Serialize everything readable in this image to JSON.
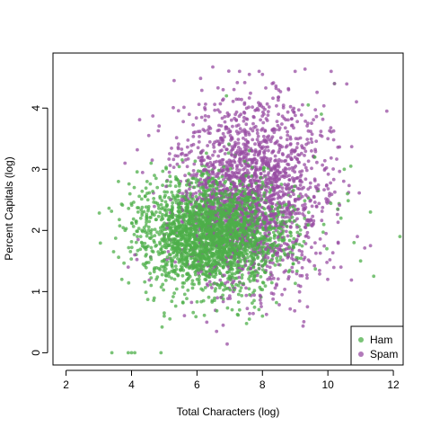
{
  "chart_data": {
    "type": "scatter",
    "title": "",
    "xlabel": "Total Characters (log)",
    "ylabel": "Percent Capitals (log)",
    "xlim": [
      1.6,
      12.3
    ],
    "ylim": [
      -0.2,
      4.9
    ],
    "xticks": [
      2,
      4,
      6,
      8,
      10,
      12
    ],
    "yticks": [
      0,
      1,
      2,
      3,
      4
    ],
    "legend": {
      "position": "bottom-right",
      "entries": [
        "Ham",
        "Spam"
      ]
    },
    "series": [
      {
        "name": "Ham",
        "color": "#4daf4a",
        "opacity": 0.75,
        "cluster": {
          "x_mean": 6.5,
          "x_sd": 1.1,
          "y_mean": 1.95,
          "y_sd": 0.45,
          "count": 2600
        },
        "points": [
          [
            3.4,
            0.0
          ],
          [
            3.9,
            0.0
          ],
          [
            4.0,
            0.0
          ],
          [
            4.1,
            0.0
          ],
          [
            4.9,
            0.0
          ],
          [
            3.6,
            2.8
          ],
          [
            4.6,
            3.1
          ],
          [
            4.7,
            2.9
          ],
          [
            5.0,
            0.6
          ],
          [
            5.0,
            0.65
          ],
          [
            4.6,
            1.1
          ],
          [
            4.2,
            2.3
          ],
          [
            4.5,
            2.5
          ],
          [
            4.4,
            2.0
          ],
          [
            10.5,
            3.0
          ],
          [
            10.7,
            3.05
          ],
          [
            10.6,
            2.6
          ],
          [
            10.4,
            2.2
          ],
          [
            10.3,
            2.35
          ],
          [
            11.3,
            2.3
          ],
          [
            12.2,
            1.9
          ],
          [
            11.4,
            1.25
          ],
          [
            11.0,
            1.5
          ],
          [
            10.8,
            1.8
          ],
          [
            9.8,
            3.9
          ],
          [
            10.2,
            4.4
          ],
          [
            7.6,
            0.55
          ],
          [
            8.0,
            0.6
          ],
          [
            7.3,
            0.7
          ],
          [
            6.2,
            0.85
          ],
          [
            9.4,
            4.05
          ],
          [
            6.9,
            4.2
          ],
          [
            9.6,
            3.2
          ]
        ]
      },
      {
        "name": "Spam",
        "color": "#984ea3",
        "opacity": 0.75,
        "cluster": {
          "x_mean": 7.7,
          "x_sd": 1.1,
          "y_mean": 2.6,
          "y_sd": 0.75,
          "count": 1900
        },
        "points": [
          [
            7.3,
            4.6
          ],
          [
            7.6,
            4.55
          ],
          [
            7.9,
            4.6
          ],
          [
            8.0,
            4.55
          ],
          [
            9.0,
            4.6
          ],
          [
            10.1,
            4.6
          ],
          [
            5.3,
            4.45
          ],
          [
            6.8,
            4.3
          ],
          [
            8.3,
            4.4
          ],
          [
            8.8,
            4.3
          ],
          [
            11.8,
            3.95
          ],
          [
            10.9,
            1.9
          ],
          [
            11.3,
            1.75
          ],
          [
            10.2,
            4.4
          ],
          [
            3.9,
            1.4
          ],
          [
            4.1,
            1.6
          ],
          [
            4.2,
            1.85
          ],
          [
            3.8,
            3.1
          ],
          [
            6.8,
            0.45
          ],
          [
            6.6,
            0.35
          ],
          [
            6.3,
            0.5
          ],
          [
            10.0,
            3.5
          ],
          [
            9.5,
            3.3
          ],
          [
            6.2,
            2.4
          ],
          [
            5.9,
            3.6
          ],
          [
            8.6,
            0.95
          ],
          [
            9.1,
            1.1
          ],
          [
            10.4,
            1.4
          ]
        ]
      }
    ]
  }
}
